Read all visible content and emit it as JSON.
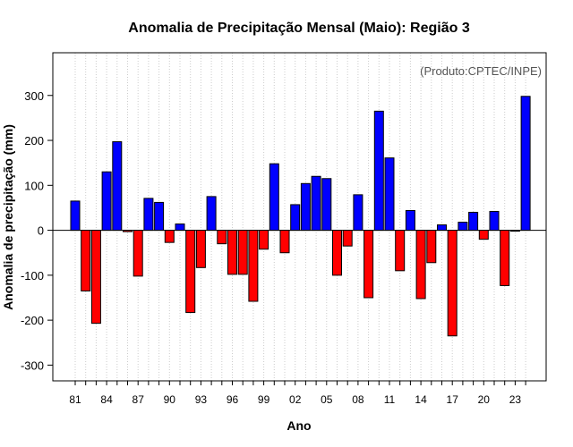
{
  "chart_data": {
    "type": "bar",
    "title": "Anomalia de Precipitação Mensal (Maio): Região 3",
    "xlabel": "Ano",
    "ylabel": "Anomalia de precipitação (mm)",
    "annotation": "(Produto:CPTEC/INPE)",
    "ylim": [
      -335,
      395
    ],
    "yticks": [
      -300,
      -200,
      -100,
      0,
      100,
      200,
      300
    ],
    "grid": "vertical dotted",
    "categories": [
      "81",
      "82",
      "83",
      "84",
      "85",
      "86",
      "87",
      "88",
      "89",
      "90",
      "91",
      "92",
      "93",
      "94",
      "95",
      "96",
      "97",
      "98",
      "99",
      "00",
      "01",
      "02",
      "03",
      "04",
      "05",
      "06",
      "07",
      "08",
      "09",
      "10",
      "11",
      "12",
      "13",
      "14",
      "15",
      "16",
      "17",
      "18",
      "19",
      "20",
      "21",
      "22",
      "23",
      "24"
    ],
    "xtick_labels": [
      "81",
      "84",
      "87",
      "90",
      "93",
      "96",
      "99",
      "02",
      "05",
      "08",
      "11",
      "14",
      "17",
      "20",
      "23"
    ],
    "values": [
      65,
      -135,
      -207,
      130,
      197,
      -3,
      -102,
      71,
      62,
      -27,
      14,
      -183,
      -83,
      75,
      -30,
      -98,
      -98,
      -158,
      -42,
      148,
      -50,
      57,
      104,
      120,
      115,
      -100,
      -35,
      79,
      -150,
      265,
      161,
      -90,
      44,
      -152,
      -72,
      12,
      -235,
      18,
      40,
      -20,
      42,
      -123,
      0,
      298
    ],
    "colors": {
      "positive": "#0000ff",
      "negative": "#ff0000",
      "zero_line": "#000000",
      "grid": "#cccccc"
    }
  }
}
